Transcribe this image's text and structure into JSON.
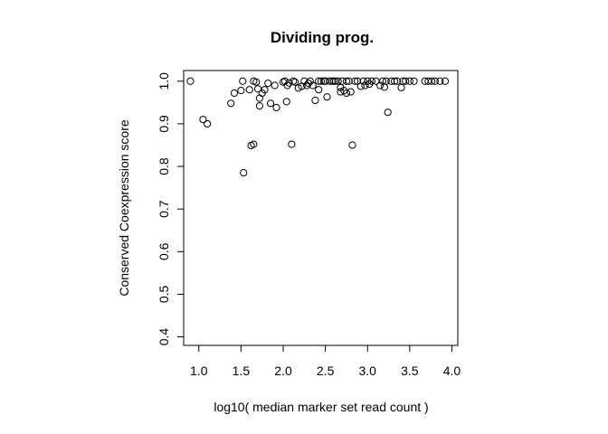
{
  "chart_data": {
    "type": "scatter",
    "title": "Dividing prog.",
    "xlabel": "log10( median marker set read count )",
    "ylabel": "Conserved Coexpression score",
    "xlim": [
      0.82,
      4.07
    ],
    "ylim": [
      0.38,
      1.025
    ],
    "x_ticks": [
      1.0,
      1.5,
      2.0,
      2.5,
      3.0,
      3.5,
      4.0
    ],
    "x_tick_labels": [
      "1.0",
      "1.5",
      "2.0",
      "2.5",
      "3.0",
      "3.5",
      "4.0"
    ],
    "y_ticks": [
      0.4,
      0.5,
      0.6,
      0.7,
      0.8,
      0.9,
      1.0
    ],
    "y_tick_labels": [
      "0.4",
      "0.5",
      "0.6",
      "0.7",
      "0.8",
      "0.9",
      "1.0"
    ],
    "grid": false,
    "legend": "none",
    "points": [
      [
        0.9,
        1.0
      ],
      [
        1.05,
        0.91
      ],
      [
        1.1,
        0.9
      ],
      [
        1.38,
        0.948
      ],
      [
        1.42,
        0.972
      ],
      [
        1.5,
        0.978
      ],
      [
        1.52,
        1.0
      ],
      [
        1.53,
        0.785
      ],
      [
        1.6,
        0.98
      ],
      [
        1.62,
        0.849
      ],
      [
        1.65,
        0.852
      ],
      [
        1.65,
        1.0
      ],
      [
        1.68,
        0.998
      ],
      [
        1.7,
        0.982
      ],
      [
        1.72,
        0.942
      ],
      [
        1.72,
        0.96
      ],
      [
        1.75,
        0.972
      ],
      [
        1.78,
        0.98
      ],
      [
        1.82,
        0.995
      ],
      [
        1.85,
        0.948
      ],
      [
        1.9,
        0.99
      ],
      [
        1.92,
        0.938
      ],
      [
        2.0,
        0.998
      ],
      [
        2.02,
        1.0
      ],
      [
        2.04,
        0.952
      ],
      [
        2.05,
        0.99
      ],
      [
        2.07,
        0.996
      ],
      [
        2.1,
        0.852
      ],
      [
        2.12,
        1.0
      ],
      [
        2.14,
        0.998
      ],
      [
        2.18,
        0.984
      ],
      [
        2.22,
        0.988
      ],
      [
        2.25,
        1.0
      ],
      [
        2.28,
        0.99
      ],
      [
        2.3,
        0.995
      ],
      [
        2.32,
        1.0
      ],
      [
        2.35,
        0.99
      ],
      [
        2.38,
        0.955
      ],
      [
        2.42,
        0.98
      ],
      [
        2.42,
        1.0
      ],
      [
        2.45,
        1.0
      ],
      [
        2.48,
        1.0
      ],
      [
        2.5,
        1.0
      ],
      [
        2.52,
        0.963
      ],
      [
        2.55,
        1.0
      ],
      [
        2.58,
        1.0
      ],
      [
        2.6,
        1.0
      ],
      [
        2.62,
        1.0
      ],
      [
        2.65,
        1.0
      ],
      [
        2.68,
        0.985
      ],
      [
        2.68,
        0.975
      ],
      [
        2.7,
        1.0
      ],
      [
        2.72,
        0.978
      ],
      [
        2.75,
        1.0
      ],
      [
        2.75,
        0.972
      ],
      [
        2.78,
        1.0
      ],
      [
        2.8,
        0.975
      ],
      [
        2.82,
        0.85
      ],
      [
        2.85,
        1.0
      ],
      [
        2.88,
        1.0
      ],
      [
        2.92,
        0.988
      ],
      [
        2.95,
        1.0
      ],
      [
        2.97,
        0.99
      ],
      [
        3.0,
        1.0
      ],
      [
        3.02,
        0.993
      ],
      [
        3.05,
        1.0
      ],
      [
        3.1,
        1.0
      ],
      [
        3.15,
        0.99
      ],
      [
        3.18,
        1.0
      ],
      [
        3.2,
        0.986
      ],
      [
        3.22,
        1.0
      ],
      [
        3.24,
        0.927
      ],
      [
        3.28,
        1.0
      ],
      [
        3.32,
        1.0
      ],
      [
        3.35,
        1.0
      ],
      [
        3.4,
        0.985
      ],
      [
        3.42,
        1.0
      ],
      [
        3.45,
        1.0
      ],
      [
        3.5,
        1.0
      ],
      [
        3.55,
        1.0
      ],
      [
        3.68,
        1.0
      ],
      [
        3.72,
        1.0
      ],
      [
        3.76,
        1.0
      ],
      [
        3.8,
        1.0
      ],
      [
        3.86,
        1.0
      ],
      [
        3.92,
        1.0
      ]
    ]
  }
}
